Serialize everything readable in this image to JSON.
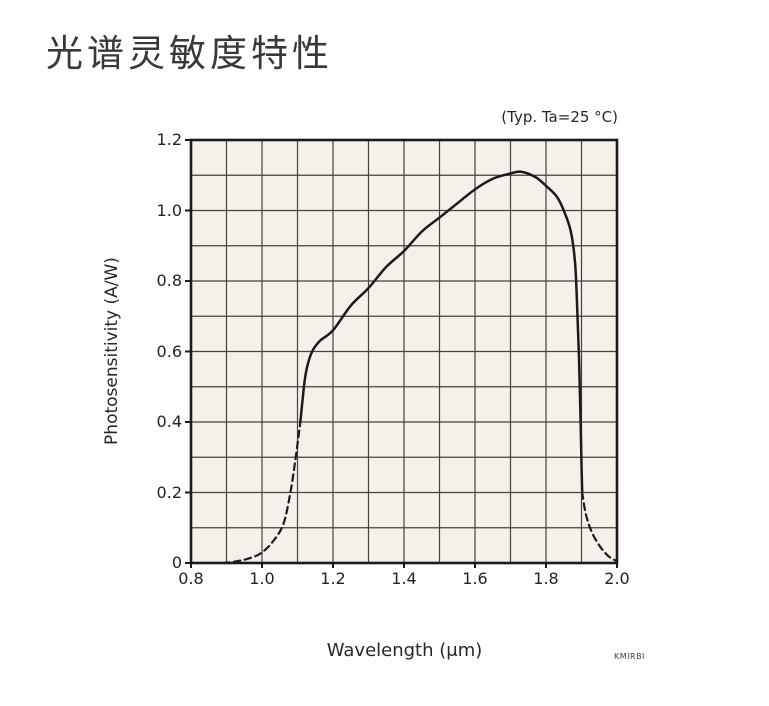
{
  "page": {
    "title": "光谱灵敏度特性",
    "footer_code": "KMIRBI"
  },
  "chart_data": {
    "type": "line",
    "title": "光谱灵敏度特性",
    "condition_note": "(Typ. Ta=25 °C)",
    "xlabel": "Wavelength (μm)",
    "ylabel": "Photosensitivity (A/W)",
    "xlim": [
      0.8,
      2.0
    ],
    "ylim": [
      0,
      1.2
    ],
    "x_tick_labels": [
      "0.8",
      "1.0",
      "1.2",
      "1.4",
      "1.6",
      "1.8",
      "2.0"
    ],
    "y_tick_labels": [
      "1.2",
      "1.0",
      "0.8",
      "0.6",
      "0.4",
      "0.2",
      "0"
    ],
    "grid": true,
    "grid_step": 0.1,
    "legend_position": "none",
    "colors": {
      "plot_background": "#f5f1ea",
      "grid_line": "#45413b",
      "frame": "#1d1b18",
      "curve": "#1b1b1f"
    },
    "series": [
      {
        "name": "cutoff-short-wavelength",
        "style": "dashed",
        "points": [
          [
            0.89,
            0.0
          ],
          [
            0.93,
            0.005
          ],
          [
            0.97,
            0.015
          ],
          [
            1.0,
            0.03
          ],
          [
            1.03,
            0.06
          ],
          [
            1.06,
            0.11
          ],
          [
            1.08,
            0.2
          ],
          [
            1.095,
            0.3
          ],
          [
            1.108,
            0.4
          ]
        ]
      },
      {
        "name": "spectral-response-main",
        "style": "solid",
        "points": [
          [
            1.108,
            0.4
          ],
          [
            1.115,
            0.47
          ],
          [
            1.122,
            0.53
          ],
          [
            1.132,
            0.575
          ],
          [
            1.145,
            0.607
          ],
          [
            1.165,
            0.632
          ],
          [
            1.2,
            0.66
          ],
          [
            1.25,
            0.73
          ],
          [
            1.3,
            0.78
          ],
          [
            1.35,
            0.84
          ],
          [
            1.4,
            0.885
          ],
          [
            1.45,
            0.94
          ],
          [
            1.5,
            0.98
          ],
          [
            1.55,
            1.02
          ],
          [
            1.6,
            1.06
          ],
          [
            1.65,
            1.09
          ],
          [
            1.7,
            1.105
          ],
          [
            1.73,
            1.11
          ],
          [
            1.77,
            1.095
          ],
          [
            1.8,
            1.07
          ],
          [
            1.83,
            1.04
          ],
          [
            1.85,
            1.0
          ],
          [
            1.87,
            0.94
          ],
          [
            1.882,
            0.85
          ],
          [
            1.888,
            0.72
          ],
          [
            1.893,
            0.58
          ],
          [
            1.897,
            0.42
          ],
          [
            1.9,
            0.28
          ],
          [
            1.902,
            0.2
          ]
        ]
      },
      {
        "name": "cutoff-long-wavelength",
        "style": "dashed",
        "points": [
          [
            1.902,
            0.2
          ],
          [
            1.912,
            0.14
          ],
          [
            1.928,
            0.09
          ],
          [
            1.95,
            0.05
          ],
          [
            1.975,
            0.02
          ],
          [
            2.0,
            0.005
          ]
        ]
      }
    ]
  }
}
